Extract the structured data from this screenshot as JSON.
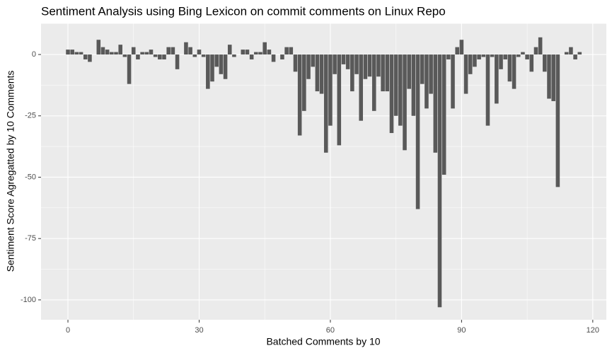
{
  "chart_data": {
    "type": "bar",
    "title": "Sentiment Analysis using Bing Lexicon on commit comments on Linux Repo",
    "x_label": "Batched Comments by 10",
    "y_label": "Sentiment Score Agregatted by 10 Comments",
    "x": [
      0,
      1,
      2,
      3,
      4,
      5,
      6,
      7,
      8,
      9,
      10,
      11,
      12,
      13,
      14,
      15,
      16,
      17,
      18,
      19,
      20,
      21,
      22,
      23,
      24,
      25,
      26,
      27,
      28,
      29,
      30,
      31,
      32,
      33,
      34,
      35,
      36,
      37,
      38,
      39,
      40,
      41,
      42,
      43,
      44,
      45,
      46,
      47,
      48,
      49,
      50,
      51,
      52,
      53,
      54,
      55,
      56,
      57,
      58,
      59,
      60,
      61,
      62,
      63,
      64,
      65,
      66,
      67,
      68,
      69,
      70,
      71,
      72,
      73,
      74,
      75,
      76,
      77,
      78,
      79,
      80,
      81,
      82,
      83,
      84,
      85,
      86,
      87,
      88,
      89,
      90,
      91,
      92,
      93,
      94,
      95,
      96,
      97,
      98,
      99,
      100,
      101,
      102,
      103,
      104,
      105,
      106,
      107,
      108,
      109,
      110,
      111,
      112,
      113,
      114,
      115,
      116,
      117
    ],
    "values": [
      2,
      2,
      1,
      1,
      -2,
      -3,
      0,
      6,
      3,
      2,
      1,
      1,
      4,
      -1,
      -12,
      3,
      -2,
      1,
      1,
      2,
      -1,
      -2,
      -2,
      3,
      3,
      -6,
      0,
      5,
      3,
      -1,
      2,
      -1,
      -14,
      -11,
      -5,
      -8,
      -10,
      4,
      -1,
      0,
      2,
      2,
      -2,
      1,
      1,
      5,
      2,
      -3,
      0,
      -2,
      3,
      3,
      -7,
      -33,
      -23,
      -10,
      -5,
      -15,
      -16,
      -40,
      -29,
      -8,
      -37,
      -4,
      -6,
      -15,
      -8,
      -27,
      -10,
      -9,
      -23,
      -9,
      -15,
      -15,
      -32,
      -25,
      -29,
      -39,
      -14,
      -25,
      -63,
      -12,
      -22,
      -16,
      -40,
      -103,
      -49,
      -2,
      -22,
      3,
      6,
      -16,
      -8,
      -5,
      -2,
      -1,
      -29,
      -1,
      -20,
      -6,
      -2,
      -11,
      -14,
      -1,
      1,
      -2,
      -7,
      3,
      7,
      -7,
      -18,
      -19,
      -54,
      0,
      1,
      3,
      -2,
      1
    ],
    "color": "#595959",
    "xlim": [
      -6.15,
      123.1
    ],
    "ylim": [
      -108.1,
      12.7
    ],
    "xticks": [
      0,
      30,
      60,
      90,
      120
    ],
    "yticks": [
      -100,
      -75,
      -50,
      -25,
      0
    ],
    "grid": true
  }
}
